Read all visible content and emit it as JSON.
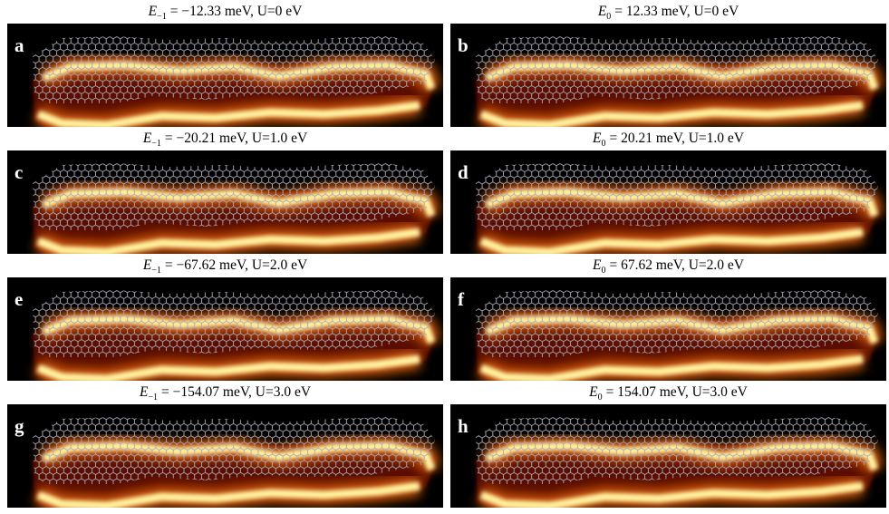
{
  "panels": [
    {
      "label": "a",
      "title": {
        "symbol": "E",
        "subscript": "−1",
        "text": "= −12.33 meV, U=0 eV"
      }
    },
    {
      "label": "b",
      "title": {
        "symbol": "E",
        "subscript": "0",
        "text": "= 12.33 meV, U=0 eV"
      }
    },
    {
      "label": "c",
      "title": {
        "symbol": "E",
        "subscript": "−1",
        "text": "= −20.21 meV, U=1.0 eV"
      }
    },
    {
      "label": "d",
      "title": {
        "symbol": "E",
        "subscript": "0",
        "text": "= 20.21 meV, U=1.0 eV"
      }
    },
    {
      "label": "e",
      "title": {
        "symbol": "E",
        "subscript": "−1",
        "text": "= −67.62 meV, U=2.0 eV"
      }
    },
    {
      "label": "f",
      "title": {
        "symbol": "E",
        "subscript": "0",
        "text": "= 67.62 meV, U=2.0 eV"
      }
    },
    {
      "label": "g",
      "title": {
        "symbol": "E",
        "subscript": "−1",
        "text": "= −154.07 meV, U=3.0 eV"
      }
    },
    {
      "label": "h",
      "title": {
        "symbol": "E",
        "subscript": "0",
        "text": "= 154.07 meV, U=3.0 eV"
      }
    }
  ]
}
